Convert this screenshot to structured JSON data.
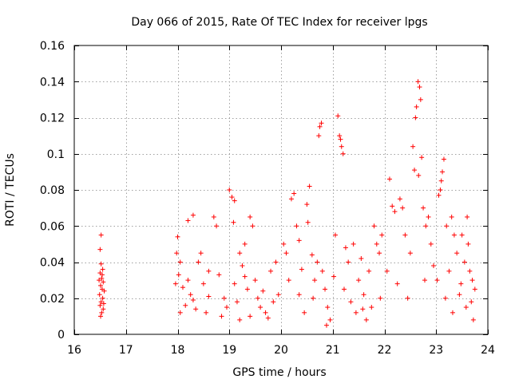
{
  "chart_data": {
    "type": "scatter",
    "title": "Day 066 of 2015, Rate Of TEC Index for receiver lpgs",
    "xlabel": "GPS time / hours",
    "ylabel": "ROTI / TECUs",
    "xlim": [
      16,
      24
    ],
    "ylim": [
      0,
      0.16
    ],
    "xticks": [
      16,
      17,
      18,
      19,
      20,
      21,
      22,
      23,
      24
    ],
    "yticks": [
      0,
      0.02,
      0.04,
      0.06,
      0.08,
      0.1,
      0.12,
      0.14,
      0.16
    ],
    "xtick_labels": [
      "16",
      "17",
      "18",
      "19",
      "20",
      "21",
      "22",
      "23",
      "24"
    ],
    "ytick_labels": [
      "0",
      "0.02",
      "0.04",
      "0.06",
      "0.08",
      "0.1",
      "0.12",
      "0.14",
      "0.16"
    ],
    "grid": true,
    "marker": "+",
    "color": "#ff0000",
    "series": [
      {
        "name": "lpgs",
        "points": [
          [
            16.52,
            0.055
          ],
          [
            16.5,
            0.047
          ],
          [
            16.52,
            0.039
          ],
          [
            16.55,
            0.036
          ],
          [
            16.5,
            0.034
          ],
          [
            16.53,
            0.031
          ],
          [
            16.56,
            0.029
          ],
          [
            16.51,
            0.027
          ],
          [
            16.54,
            0.025
          ],
          [
            16.49,
            0.022
          ],
          [
            16.55,
            0.02
          ],
          [
            16.52,
            0.018
          ],
          [
            16.5,
            0.016
          ],
          [
            16.56,
            0.014
          ],
          [
            16.53,
            0.012
          ],
          [
            16.51,
            0.01
          ],
          [
            16.57,
            0.017
          ],
          [
            16.48,
            0.03
          ],
          [
            16.58,
            0.024
          ],
          [
            16.54,
            0.033
          ],
          [
            18.0,
            0.054
          ],
          [
            17.98,
            0.045
          ],
          [
            18.05,
            0.04
          ],
          [
            18.02,
            0.033
          ],
          [
            17.96,
            0.028
          ],
          [
            18.1,
            0.026
          ],
          [
            18.2,
            0.03
          ],
          [
            18.25,
            0.022
          ],
          [
            18.3,
            0.019
          ],
          [
            18.15,
            0.016
          ],
          [
            18.05,
            0.012
          ],
          [
            18.35,
            0.014
          ],
          [
            18.2,
            0.063
          ],
          [
            18.3,
            0.066
          ],
          [
            18.4,
            0.04
          ],
          [
            18.5,
            0.028
          ],
          [
            18.6,
            0.021
          ],
          [
            18.7,
            0.065
          ],
          [
            18.75,
            0.06
          ],
          [
            18.8,
            0.033
          ],
          [
            18.9,
            0.02
          ],
          [
            18.95,
            0.015
          ],
          [
            18.85,
            0.01
          ],
          [
            18.6,
            0.035
          ],
          [
            18.45,
            0.045
          ],
          [
            18.55,
            0.012
          ],
          [
            19.0,
            0.08
          ],
          [
            19.05,
            0.076
          ],
          [
            19.1,
            0.074
          ],
          [
            19.08,
            0.062
          ],
          [
            19.2,
            0.045
          ],
          [
            19.25,
            0.038
          ],
          [
            19.3,
            0.05
          ],
          [
            19.4,
            0.065
          ],
          [
            19.45,
            0.06
          ],
          [
            19.35,
            0.025
          ],
          [
            19.15,
            0.018
          ],
          [
            19.5,
            0.03
          ],
          [
            19.55,
            0.02
          ],
          [
            19.6,
            0.015
          ],
          [
            19.7,
            0.012
          ],
          [
            19.8,
            0.035
          ],
          [
            19.9,
            0.04
          ],
          [
            19.65,
            0.024
          ],
          [
            19.75,
            0.009
          ],
          [
            19.2,
            0.008
          ],
          [
            19.1,
            0.028
          ],
          [
            19.4,
            0.01
          ],
          [
            19.85,
            0.018
          ],
          [
            19.95,
            0.022
          ],
          [
            19.3,
            0.032
          ],
          [
            20.05,
            0.05
          ],
          [
            20.1,
            0.045
          ],
          [
            20.2,
            0.075
          ],
          [
            20.25,
            0.078
          ],
          [
            20.3,
            0.06
          ],
          [
            20.35,
            0.052
          ],
          [
            20.4,
            0.036
          ],
          [
            20.5,
            0.072
          ],
          [
            20.55,
            0.082
          ],
          [
            20.52,
            0.062
          ],
          [
            20.6,
            0.044
          ],
          [
            20.7,
            0.04
          ],
          [
            20.75,
            0.115
          ],
          [
            20.78,
            0.117
          ],
          [
            20.73,
            0.11
          ],
          [
            20.8,
            0.035
          ],
          [
            20.85,
            0.025
          ],
          [
            20.9,
            0.015
          ],
          [
            20.95,
            0.008
          ],
          [
            20.62,
            0.02
          ],
          [
            20.45,
            0.012
          ],
          [
            20.15,
            0.03
          ],
          [
            20.35,
            0.022
          ],
          [
            20.65,
            0.03
          ],
          [
            20.88,
            0.005
          ],
          [
            21.1,
            0.121
          ],
          [
            21.15,
            0.108
          ],
          [
            21.17,
            0.104
          ],
          [
            21.2,
            0.1
          ],
          [
            21.13,
            0.11
          ],
          [
            21.05,
            0.055
          ],
          [
            21.25,
            0.048
          ],
          [
            21.3,
            0.04
          ],
          [
            21.4,
            0.05
          ],
          [
            21.5,
            0.03
          ],
          [
            21.6,
            0.022
          ],
          [
            21.7,
            0.035
          ],
          [
            21.8,
            0.06
          ],
          [
            21.85,
            0.05
          ],
          [
            21.9,
            0.045
          ],
          [
            21.95,
            0.055
          ],
          [
            21.45,
            0.012
          ],
          [
            21.35,
            0.018
          ],
          [
            21.55,
            0.042
          ],
          [
            21.75,
            0.015
          ],
          [
            21.65,
            0.008
          ],
          [
            21.22,
            0.025
          ],
          [
            21.92,
            0.02
          ],
          [
            21.02,
            0.032
          ],
          [
            21.58,
            0.014
          ],
          [
            22.1,
            0.086
          ],
          [
            22.15,
            0.071
          ],
          [
            22.2,
            0.068
          ],
          [
            22.3,
            0.075
          ],
          [
            22.35,
            0.07
          ],
          [
            22.4,
            0.055
          ],
          [
            22.5,
            0.045
          ],
          [
            22.55,
            0.104
          ],
          [
            22.6,
            0.12
          ],
          [
            22.62,
            0.126
          ],
          [
            22.65,
            0.14
          ],
          [
            22.68,
            0.137
          ],
          [
            22.7,
            0.13
          ],
          [
            22.58,
            0.091
          ],
          [
            22.66,
            0.088
          ],
          [
            22.72,
            0.098
          ],
          [
            22.75,
            0.07
          ],
          [
            22.8,
            0.06
          ],
          [
            22.85,
            0.065
          ],
          [
            22.9,
            0.05
          ],
          [
            22.95,
            0.038
          ],
          [
            22.05,
            0.035
          ],
          [
            22.25,
            0.028
          ],
          [
            22.45,
            0.02
          ],
          [
            22.78,
            0.03
          ],
          [
            23.05,
            0.077
          ],
          [
            23.1,
            0.085
          ],
          [
            23.12,
            0.09
          ],
          [
            23.15,
            0.097
          ],
          [
            23.08,
            0.08
          ],
          [
            23.2,
            0.06
          ],
          [
            23.3,
            0.065
          ],
          [
            23.35,
            0.055
          ],
          [
            23.4,
            0.045
          ],
          [
            23.5,
            0.055
          ],
          [
            23.55,
            0.04
          ],
          [
            23.6,
            0.065
          ],
          [
            23.62,
            0.05
          ],
          [
            23.65,
            0.035
          ],
          [
            23.7,
            0.03
          ],
          [
            23.75,
            0.025
          ],
          [
            23.25,
            0.035
          ],
          [
            23.45,
            0.022
          ],
          [
            23.58,
            0.015
          ],
          [
            23.72,
            0.008
          ],
          [
            23.02,
            0.03
          ],
          [
            23.32,
            0.012
          ],
          [
            23.68,
            0.018
          ],
          [
            23.48,
            0.028
          ],
          [
            23.18,
            0.02
          ]
        ]
      }
    ]
  }
}
